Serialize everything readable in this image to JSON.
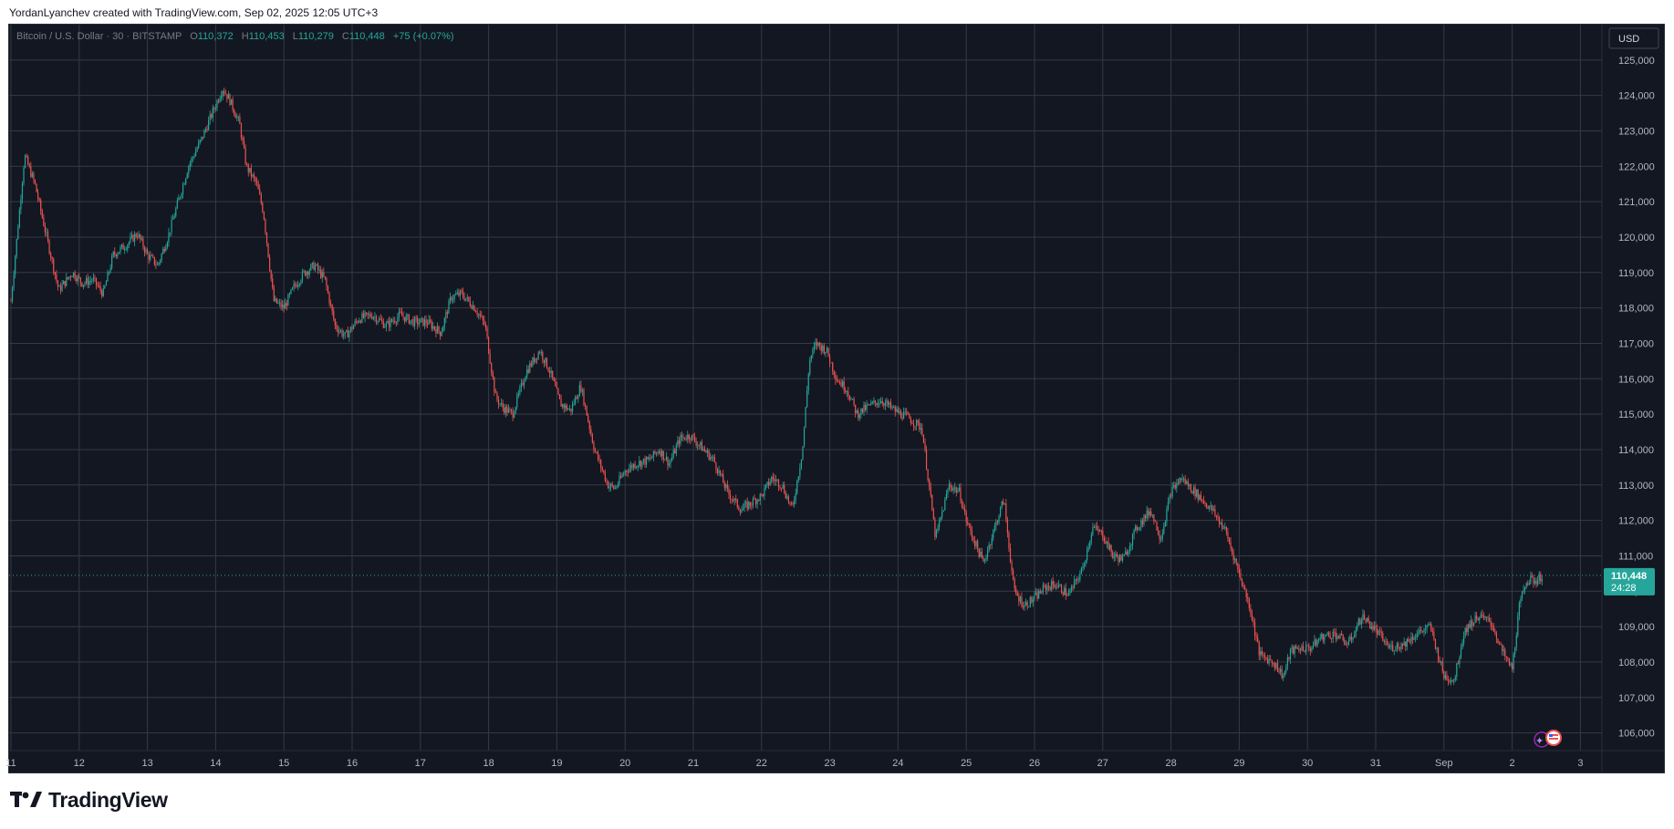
{
  "header": {
    "caption": "YordanLyanchev created with TradingView.com, Sep 02, 2025 12:05 UTC+3"
  },
  "legend": {
    "symbol": "Bitcoin / U.S. Dollar · 30 · BITSTAMP",
    "open_label": "O",
    "open_value": "110,372",
    "high_label": "H",
    "high_value": "110,453",
    "low_label": "L",
    "low_value": "110,279",
    "close_label": "C",
    "close_value": "110,448",
    "change": "+75 (+0.07%)"
  },
  "price_scale": {
    "currency": "USD",
    "last_price": "110,448",
    "countdown": "24:28"
  },
  "footer": {
    "brand": "TradingView",
    "logo_icon": "tradingview-logo-icon"
  },
  "colors": {
    "background": "#131722",
    "grid": "#363a45",
    "up": "#26a69a",
    "down": "#ef5350",
    "text": "#b2b5be",
    "price_line": "#26a69a"
  },
  "chart_data": {
    "type": "candlestick",
    "symbol": "Bitcoin / U.S. Dollar",
    "interval": "30",
    "exchange": "BITSTAMP",
    "currency": "USD",
    "ylim": [
      105500,
      126000
    ],
    "yticks": [
      "106,000",
      "107,000",
      "108,000",
      "109,000",
      "110,000",
      "111,000",
      "112,000",
      "113,000",
      "114,000",
      "115,000",
      "116,000",
      "117,000",
      "118,000",
      "119,000",
      "120,000",
      "121,000",
      "122,000",
      "123,000",
      "124,000",
      "125,000"
    ],
    "xticks": [
      "11",
      "12",
      "13",
      "14",
      "15",
      "16",
      "17",
      "18",
      "19",
      "20",
      "21",
      "22",
      "23",
      "24",
      "25",
      "26",
      "27",
      "28",
      "29",
      "30",
      "31",
      "Sep",
      "2",
      "3"
    ],
    "last_price": 110448,
    "x": [
      11.0,
      11.2,
      11.35,
      11.5,
      11.7,
      11.9,
      12.05,
      12.2,
      12.35,
      12.5,
      12.7,
      12.85,
      13.0,
      13.15,
      13.3,
      13.45,
      13.6,
      13.8,
      13.95,
      14.1,
      14.2,
      14.35,
      14.45,
      14.6,
      14.7,
      14.85,
      15.0,
      15.15,
      15.3,
      15.45,
      15.6,
      15.75,
      15.9,
      16.1,
      16.3,
      16.5,
      16.7,
      16.9,
      17.1,
      17.3,
      17.45,
      17.6,
      17.8,
      17.95,
      18.1,
      18.2,
      18.35,
      18.55,
      18.75,
      18.9,
      19.05,
      19.2,
      19.35,
      19.55,
      19.75,
      19.85,
      20.0,
      20.15,
      20.35,
      20.5,
      20.65,
      20.8,
      20.95,
      21.1,
      21.3,
      21.5,
      21.7,
      21.85,
      22.0,
      22.15,
      22.3,
      22.45,
      22.6,
      22.7,
      22.8,
      22.95,
      23.1,
      23.25,
      23.4,
      23.55,
      23.75,
      23.95,
      24.15,
      24.35,
      24.55,
      24.75,
      24.9,
      25.0,
      25.1,
      25.25,
      25.4,
      25.55,
      25.7,
      25.85,
      26.0,
      26.15,
      26.3,
      26.5,
      26.7,
      26.85,
      27.0,
      27.15,
      27.3,
      27.5,
      27.7,
      27.85,
      28.0,
      28.15,
      28.3,
      28.45,
      28.6,
      28.8,
      29.0,
      29.15,
      29.3,
      29.5,
      29.65,
      29.75,
      29.9,
      30.05,
      30.2,
      30.4,
      30.6,
      30.8,
      31.0,
      31.2,
      31.4,
      31.6,
      31.8,
      32.0,
      32.15,
      32.3,
      32.5,
      32.7,
      32.85,
      33.0,
      33.1,
      33.2,
      33.35,
      33.45
    ],
    "y": [
      118200,
      122300,
      121500,
      120200,
      118500,
      119000,
      118700,
      118800,
      118400,
      119500,
      119800,
      120100,
      119500,
      119200,
      120000,
      121000,
      122000,
      122800,
      123500,
      124200,
      123900,
      123200,
      122000,
      121500,
      120700,
      118200,
      118000,
      118600,
      119000,
      119200,
      118800,
      117500,
      117200,
      117700,
      117800,
      117500,
      117800,
      117600,
      117600,
      117300,
      118300,
      118400,
      118000,
      117500,
      115500,
      115200,
      115000,
      116200,
      116800,
      116200,
      115300,
      115100,
      115800,
      114000,
      113000,
      112900,
      113400,
      113600,
      113700,
      114000,
      113600,
      114300,
      114400,
      114100,
      113700,
      112800,
      112300,
      112500,
      112700,
      113200,
      113000,
      112300,
      114000,
      116500,
      117000,
      116800,
      116000,
      115700,
      115000,
      115200,
      115400,
      115100,
      114900,
      114600,
      111500,
      113000,
      112800,
      112000,
      111500,
      110800,
      111700,
      112600,
      110000,
      109600,
      109800,
      110100,
      110200,
      109900,
      110600,
      111800,
      111600,
      111000,
      110900,
      111800,
      112300,
      111500,
      112800,
      113200,
      112900,
      112600,
      112300,
      111700,
      110500,
      109600,
      108200,
      108000,
      107600,
      108300,
      108400,
      108400,
      108700,
      108800,
      108500,
      109300,
      108900,
      108400,
      108500,
      108800,
      109000,
      107600,
      107500,
      108900,
      109300,
      109100,
      108300,
      107800,
      109500,
      110300,
      110300,
      110448
    ]
  }
}
